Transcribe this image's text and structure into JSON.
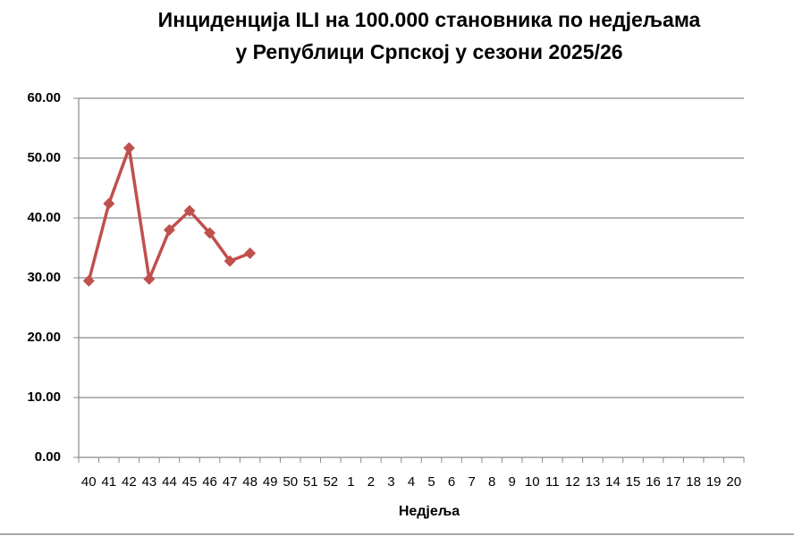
{
  "chart_data": {
    "type": "line",
    "title": [
      "Инциденција ILI на 100.000 становника по недјељама",
      "у Републици Српској у сезони 2025/26"
    ],
    "x_label": "Недјеља",
    "categories": [
      "40",
      "41",
      "42",
      "43",
      "44",
      "45",
      "46",
      "47",
      "48",
      "49",
      "50",
      "51",
      "52",
      "1",
      "2",
      "3",
      "4",
      "5",
      "6",
      "7",
      "8",
      "9",
      "10",
      "11",
      "12",
      "13",
      "14",
      "15",
      "16",
      "17",
      "18",
      "19",
      "20"
    ],
    "series": [
      {
        "name": "Инциденција ILI",
        "color": "#c0504d",
        "values": [
          29.5,
          42.4,
          51.7,
          29.8,
          38.0,
          41.2,
          37.5,
          32.8,
          34.1,
          null,
          null,
          null,
          null,
          null,
          null,
          null,
          null,
          null,
          null,
          null,
          null,
          null,
          null,
          null,
          null,
          null,
          null,
          null,
          null,
          null,
          null,
          null,
          null
        ]
      }
    ],
    "ylim": [
      0,
      60
    ],
    "yticks": [
      {
        "value": 0,
        "label": "0.00"
      },
      {
        "value": 10,
        "label": "10.00"
      },
      {
        "value": 20,
        "label": "20.00"
      },
      {
        "value": 30,
        "label": "30.00"
      },
      {
        "value": 40,
        "label": "40.00"
      },
      {
        "value": 50,
        "label": "50.00"
      },
      {
        "value": 60,
        "label": "60.00"
      }
    ],
    "grid": true
  }
}
